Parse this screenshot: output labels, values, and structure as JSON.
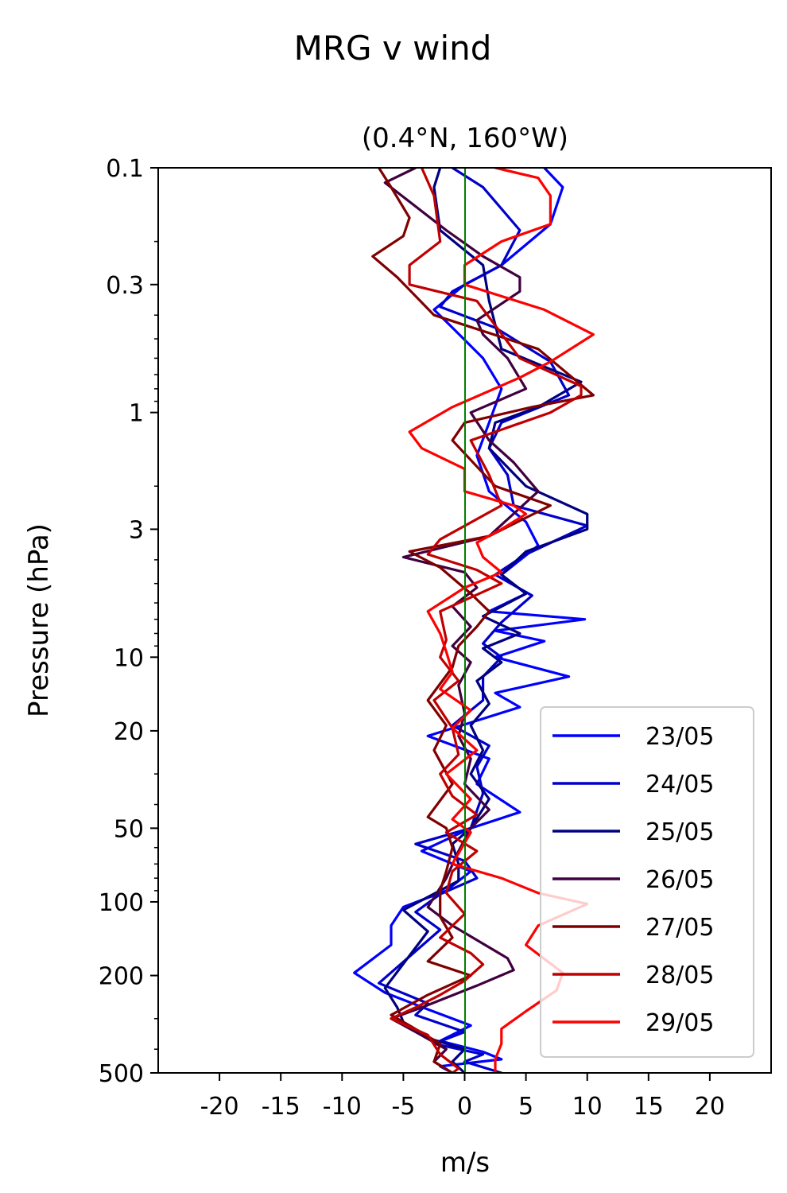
{
  "chart_data": {
    "type": "line",
    "suptitle": "MRG v wind",
    "title": "(0.4°N, 160°W)",
    "xlabel": "m/s",
    "ylabel": "Pressure (hPa)",
    "xlim": [
      -25,
      25
    ],
    "ylim": [
      500,
      0.1
    ],
    "yscale": "log",
    "grid": false,
    "legend_position": "lower-right",
    "x_ticks": [
      -20,
      -15,
      -10,
      -5,
      0,
      5,
      10,
      15,
      20
    ],
    "x_tick_labels": [
      "-20",
      "-15",
      "-10",
      "-5",
      "0",
      "5",
      "10",
      "15",
      "20"
    ],
    "y_ticks": [
      0.1,
      0.3,
      1,
      3,
      10,
      20,
      50,
      100,
      200,
      500
    ],
    "y_tick_labels": [
      "0.1",
      "0.3",
      "1",
      "3",
      "10",
      "20",
      "50",
      "100",
      "200",
      "500"
    ],
    "zero_line_color": "#008000",
    "series": [
      {
        "name": "23/05",
        "color": "#0000ff",
        "points": [
          [
            6.5,
            0.1
          ],
          [
            8,
            0.12
          ],
          [
            7,
            0.17
          ],
          [
            3,
            0.25
          ],
          [
            0,
            0.3
          ],
          [
            -2.5,
            0.38
          ],
          [
            -1,
            0.45
          ],
          [
            1.5,
            0.6
          ],
          [
            3,
            0.8
          ],
          [
            2,
            1.1
          ],
          [
            1,
            1.5
          ],
          [
            2,
            2.1
          ],
          [
            5,
            2.8
          ],
          [
            6,
            3.5
          ],
          [
            3,
            4.6
          ],
          [
            5,
            5.5
          ],
          [
            2,
            6.5
          ],
          [
            9.8,
            7.0
          ],
          [
            2.5,
            7.8
          ],
          [
            6.5,
            8.6
          ],
          [
            2.5,
            10
          ],
          [
            8.5,
            12
          ],
          [
            2.5,
            14
          ],
          [
            4.5,
            16
          ],
          [
            0.5,
            18.5
          ],
          [
            -3,
            21
          ],
          [
            2,
            26
          ],
          [
            1,
            33
          ],
          [
            4.5,
            43
          ],
          [
            0.5,
            50
          ],
          [
            -3.5,
            62
          ],
          [
            0.5,
            75
          ],
          [
            -1.5,
            90
          ],
          [
            -5,
            105
          ],
          [
            -6,
            125
          ],
          [
            -6,
            150
          ],
          [
            -9,
            195
          ],
          [
            -6.5,
            235
          ],
          [
            -3,
            275
          ],
          [
            0.5,
            320
          ],
          [
            -2,
            370
          ],
          [
            1.5,
            410
          ],
          [
            3,
            440
          ],
          [
            -2,
            470
          ],
          [
            -1,
            500
          ]
        ]
      },
      {
        "name": "24/05",
        "color": "#0000cc",
        "points": [
          [
            -1,
            0.1
          ],
          [
            1.5,
            0.12
          ],
          [
            4.5,
            0.18
          ],
          [
            3,
            0.25
          ],
          [
            -1,
            0.32
          ],
          [
            -2,
            0.37
          ],
          [
            2.5,
            0.45
          ],
          [
            7,
            0.62
          ],
          [
            8.5,
            0.85
          ],
          [
            3,
            1.1
          ],
          [
            2,
            1.4
          ],
          [
            3.5,
            1.8
          ],
          [
            4,
            2.4
          ],
          [
            10,
            2.9
          ],
          [
            5,
            3.8
          ],
          [
            2.5,
            4.6
          ],
          [
            5.5,
            5.6
          ],
          [
            3,
            7.2
          ],
          [
            1.5,
            8.8
          ],
          [
            3,
            10
          ],
          [
            1.5,
            12
          ],
          [
            1.5,
            15
          ],
          [
            -1,
            19
          ],
          [
            2,
            23
          ],
          [
            1,
            28
          ],
          [
            1.5,
            36
          ],
          [
            0.5,
            50
          ],
          [
            -4,
            58
          ],
          [
            0,
            68
          ],
          [
            1,
            80
          ],
          [
            -2,
            93
          ],
          [
            -4,
            110
          ],
          [
            -2,
            130
          ],
          [
            -7,
            215
          ],
          [
            -3,
            260
          ],
          [
            -4,
            290
          ],
          [
            0,
            340
          ],
          [
            -2.5,
            380
          ],
          [
            1.5,
            420
          ],
          [
            0,
            450
          ],
          [
            3,
            500
          ]
        ]
      },
      {
        "name": "25/05",
        "color": "#000080",
        "points": [
          [
            -2,
            0.1
          ],
          [
            -2.5,
            0.12
          ],
          [
            -2,
            0.18
          ],
          [
            1.5,
            0.25
          ],
          [
            2,
            0.35
          ],
          [
            3,
            0.55
          ],
          [
            9.5,
            0.75
          ],
          [
            6,
            0.95
          ],
          [
            2.5,
            1.1
          ],
          [
            2,
            1.4
          ],
          [
            5,
            2.0
          ],
          [
            10,
            2.6
          ],
          [
            10,
            3.0
          ],
          [
            5,
            3.7
          ],
          [
            3,
            4.6
          ],
          [
            5,
            5.5
          ],
          [
            1.5,
            6.8
          ],
          [
            4.5,
            8.0
          ],
          [
            1.5,
            9.2
          ],
          [
            3,
            10.5
          ],
          [
            1,
            12.5
          ],
          [
            2,
            15.5
          ],
          [
            0.5,
            19
          ],
          [
            1.5,
            24
          ],
          [
            0.5,
            30
          ],
          [
            2,
            38
          ],
          [
            0.5,
            50
          ],
          [
            -1,
            58
          ],
          [
            -0.5,
            70
          ],
          [
            -0.5,
            82
          ],
          [
            -5,
            108
          ],
          [
            -3,
            132
          ],
          [
            -6.5,
            225
          ],
          [
            -5.5,
            270
          ],
          [
            -5,
            310
          ],
          [
            -3,
            360
          ],
          [
            0,
            400
          ],
          [
            -1,
            450
          ],
          [
            0,
            500
          ]
        ]
      },
      {
        "name": "26/05",
        "color": "#400040",
        "points": [
          [
            -4,
            0.1
          ],
          [
            -6.5,
            0.115
          ],
          [
            -1.5,
            0.18
          ],
          [
            1.5,
            0.23
          ],
          [
            4.5,
            0.28
          ],
          [
            4.5,
            0.32
          ],
          [
            1,
            0.42
          ],
          [
            1.5,
            0.48
          ],
          [
            3.5,
            0.6
          ],
          [
            5,
            0.8
          ],
          [
            0.5,
            1.0
          ],
          [
            2,
            1.3
          ],
          [
            4,
            1.6
          ],
          [
            6,
            2.1
          ],
          [
            2,
            3.2
          ],
          [
            -5,
            3.9
          ],
          [
            0,
            4.5
          ],
          [
            1,
            5.2
          ],
          [
            -1,
            6.2
          ],
          [
            0.5,
            7.5
          ],
          [
            -1,
            9.0
          ],
          [
            0.5,
            10.5
          ],
          [
            -0.5,
            13
          ],
          [
            0,
            17
          ],
          [
            -0.5,
            21
          ],
          [
            0.5,
            26
          ],
          [
            0,
            33
          ],
          [
            2,
            42
          ],
          [
            0.5,
            50
          ],
          [
            -0.5,
            62
          ],
          [
            -1.5,
            80
          ],
          [
            -3,
            105
          ],
          [
            -1,
            125
          ],
          [
            3.5,
            170
          ],
          [
            4,
            190
          ],
          [
            1,
            220
          ],
          [
            -3.5,
            270
          ],
          [
            -6,
            300
          ],
          [
            -4,
            340
          ],
          [
            -1.5,
            400
          ],
          [
            -2.5,
            450
          ],
          [
            -1,
            500
          ]
        ]
      },
      {
        "name": "27/05",
        "color": "#800000",
        "points": [
          [
            -7,
            0.1
          ],
          [
            -6,
            0.12
          ],
          [
            -4.5,
            0.16
          ],
          [
            -5,
            0.19
          ],
          [
            -7.5,
            0.23
          ],
          [
            -5.5,
            0.28
          ],
          [
            -2.5,
            0.4
          ],
          [
            6,
            0.55
          ],
          [
            10.5,
            0.85
          ],
          [
            5.5,
            0.95
          ],
          [
            0,
            1.1
          ],
          [
            -1,
            1.3
          ],
          [
            2.5,
            2.0
          ],
          [
            7,
            2.4
          ],
          [
            2,
            3.2
          ],
          [
            -4.5,
            3.7
          ],
          [
            -2,
            4.3
          ],
          [
            0.5,
            5.5
          ],
          [
            2,
            6.5
          ],
          [
            1,
            7.5
          ],
          [
            -0.5,
            9
          ],
          [
            -1,
            11
          ],
          [
            -3,
            15
          ],
          [
            -1.5,
            19
          ],
          [
            -2.5,
            24
          ],
          [
            -1,
            33
          ],
          [
            -3,
            45
          ],
          [
            -1.5,
            50
          ],
          [
            -1,
            60
          ],
          [
            -1.5,
            75
          ],
          [
            -2,
            90
          ],
          [
            -2,
            115
          ],
          [
            -1,
            140
          ],
          [
            -3,
            175
          ],
          [
            0.5,
            200
          ],
          [
            -3,
            240
          ],
          [
            -6,
            290
          ],
          [
            -4.5,
            320
          ],
          [
            -2,
            380
          ],
          [
            -2.5,
            450
          ],
          [
            -1,
            500
          ]
        ]
      },
      {
        "name": "28/05",
        "color": "#c00000",
        "points": [
          [
            -3.5,
            0.1
          ],
          [
            -2.5,
            0.13
          ],
          [
            -2,
            0.2
          ],
          [
            -4.5,
            0.25
          ],
          [
            -4.5,
            0.3
          ],
          [
            1,
            0.35
          ],
          [
            4.5,
            0.6
          ],
          [
            9.5,
            0.78
          ],
          [
            9.5,
            0.85
          ],
          [
            7,
            1.0
          ],
          [
            0.5,
            1.3
          ],
          [
            2,
            1.8
          ],
          [
            3,
            2.4
          ],
          [
            -2,
            3.3
          ],
          [
            -3,
            3.8
          ],
          [
            1,
            4.4
          ],
          [
            3,
            5.0
          ],
          [
            -2,
            6.5
          ],
          [
            -1.5,
            8.5
          ],
          [
            -2,
            10
          ],
          [
            -0.5,
            12.5
          ],
          [
            -2.5,
            15
          ],
          [
            -1,
            19.5
          ],
          [
            -0.5,
            25
          ],
          [
            -2,
            30
          ],
          [
            -1,
            37
          ],
          [
            1,
            44
          ],
          [
            -1.5,
            52
          ],
          [
            1,
            62
          ],
          [
            -1,
            75
          ],
          [
            -1.5,
            92
          ],
          [
            0,
            112
          ],
          [
            -2,
            140
          ],
          [
            0.5,
            162
          ],
          [
            1.5,
            180
          ],
          [
            0,
            210
          ],
          [
            -2,
            240
          ],
          [
            -4,
            270
          ],
          [
            -6,
            300
          ],
          [
            -3,
            350
          ],
          [
            -2,
            420
          ],
          [
            -0.5,
            480
          ],
          [
            -1,
            500
          ]
        ]
      },
      {
        "name": "29/05",
        "color": "#ff0000",
        "points": [
          [
            2.5,
            0.1
          ],
          [
            6,
            0.11
          ],
          [
            7,
            0.13
          ],
          [
            7,
            0.17
          ],
          [
            3,
            0.2
          ],
          [
            0,
            0.25
          ],
          [
            0,
            0.3
          ],
          [
            6.5,
            0.38
          ],
          [
            10.5,
            0.48
          ],
          [
            7,
            0.62
          ],
          [
            4.5,
            0.72
          ],
          [
            -1,
            0.95
          ],
          [
            -4.5,
            1.2
          ],
          [
            -3.5,
            1.4
          ],
          [
            0,
            1.7
          ],
          [
            0,
            2.1
          ],
          [
            4,
            2.4
          ],
          [
            5,
            2.6
          ],
          [
            3,
            3.0
          ],
          [
            1,
            3.4
          ],
          [
            1.5,
            3.9
          ],
          [
            3,
            4.5
          ],
          [
            0,
            5.2
          ],
          [
            -3,
            6.5
          ],
          [
            -2,
            8
          ],
          [
            -1.5,
            9.5
          ],
          [
            -1,
            11.5
          ],
          [
            -2,
            13.5
          ],
          [
            0.5,
            16.5
          ],
          [
            -1,
            19.5
          ],
          [
            1,
            24
          ],
          [
            -1.5,
            30
          ],
          [
            0.5,
            38
          ],
          [
            -1,
            46
          ],
          [
            0.5,
            52
          ],
          [
            -1,
            70
          ],
          [
            3,
            80
          ],
          [
            6,
            92
          ],
          [
            10,
            102
          ],
          [
            6,
            125
          ],
          [
            5,
            150
          ],
          [
            8,
            195
          ],
          [
            7.5,
            230
          ],
          [
            5,
            280
          ],
          [
            3,
            330
          ],
          [
            3,
            380
          ],
          [
            2.5,
            440
          ],
          [
            2.5,
            500
          ]
        ]
      }
    ]
  }
}
